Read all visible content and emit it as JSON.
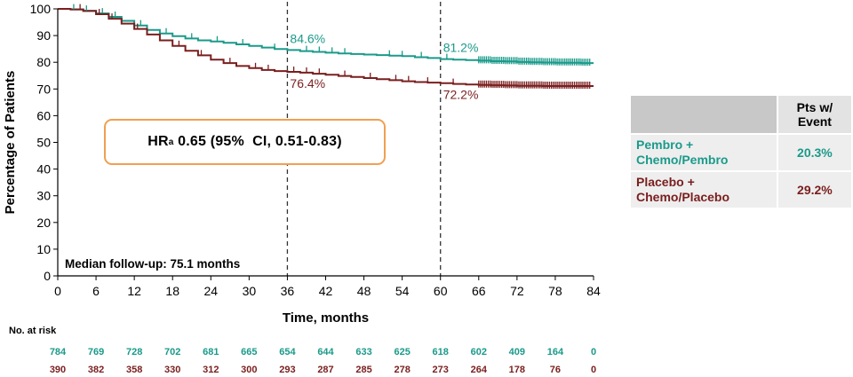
{
  "chart_data": {
    "type": "line",
    "title": "",
    "xlabel": "Time, months",
    "ylabel": "Percentage of Patients",
    "xlim": [
      0,
      84
    ],
    "ylim": [
      0,
      100
    ],
    "xticks": [
      0,
      6,
      12,
      18,
      24,
      30,
      36,
      42,
      48,
      54,
      60,
      66,
      72,
      78,
      84
    ],
    "yticks": [
      0,
      10,
      20,
      30,
      40,
      50,
      60,
      70,
      80,
      90,
      100
    ],
    "grid": false,
    "series": [
      {
        "name": "Pembro + Chemo/Pembro",
        "color": "#1a9a8a",
        "x": [
          0,
          2,
          4,
          6,
          8,
          10,
          12,
          14,
          16,
          18,
          20,
          22,
          24,
          26,
          28,
          30,
          32,
          34,
          36,
          38,
          40,
          42,
          44,
          46,
          48,
          50,
          52,
          54,
          56,
          58,
          60,
          62,
          64,
          66,
          68,
          70,
          72,
          74,
          76,
          78,
          80,
          82,
          84
        ],
        "y": [
          100,
          99.8,
          99.3,
          98.3,
          97,
          95.5,
          93.8,
          92.1,
          90.8,
          89.8,
          88.9,
          88.2,
          87.8,
          87.3,
          86.7,
          86.1,
          85.5,
          85.0,
          84.6,
          84.2,
          83.9,
          83.6,
          83.3,
          83.1,
          82.9,
          82.7,
          82.5,
          82.3,
          81.9,
          81.6,
          81.2,
          81.0,
          80.8,
          80.6,
          80.4,
          80.3,
          80.1,
          80.0,
          79.9,
          79.8,
          79.8,
          79.7,
          79.7
        ]
      },
      {
        "name": "Placebo + Chemo/Placebo",
        "color": "#7a1e1e",
        "x": [
          0,
          2,
          4,
          6,
          8,
          10,
          12,
          14,
          16,
          18,
          20,
          22,
          24,
          26,
          28,
          30,
          32,
          34,
          36,
          38,
          40,
          42,
          44,
          46,
          48,
          50,
          52,
          54,
          56,
          58,
          60,
          62,
          64,
          66,
          68,
          70,
          72,
          74,
          76,
          78,
          80,
          82,
          84
        ],
        "y": [
          100,
          99.8,
          99.2,
          98.0,
          96.3,
          94.5,
          92.5,
          90.4,
          88.2,
          86.1,
          84.3,
          82.6,
          81.0,
          79.7,
          78.6,
          77.8,
          77.1,
          76.7,
          76.4,
          76.1,
          75.7,
          75.3,
          74.9,
          74.5,
          74.1,
          73.7,
          73.3,
          72.9,
          72.6,
          72.4,
          72.2,
          71.9,
          71.7,
          71.5,
          71.4,
          71.3,
          71.2,
          71.2,
          71.1,
          71.1,
          71.1,
          71.1,
          71.1
        ]
      }
    ],
    "reference_lines": [
      36,
      60
    ],
    "annotations": [
      {
        "text": "84.6%",
        "x": 36,
        "y": 84.6,
        "series": 0
      },
      {
        "text": "76.4%",
        "x": 36,
        "y": 76.4,
        "series": 1
      },
      {
        "text": "81.2%",
        "x": 60,
        "y": 81.2,
        "series": 0
      },
      {
        "text": "72.2%",
        "x": 60,
        "y": 72.2,
        "series": 1
      }
    ],
    "numbers_at_risk": {
      "title": "No. at risk",
      "times": [
        0,
        6,
        12,
        18,
        24,
        30,
        36,
        42,
        48,
        54,
        60,
        66,
        72,
        78,
        84
      ],
      "series": [
        {
          "values": [
            784,
            769,
            728,
            702,
            681,
            665,
            654,
            644,
            633,
            625,
            618,
            602,
            409,
            164,
            0
          ]
        },
        {
          "values": [
            390,
            382,
            358,
            330,
            312,
            300,
            293,
            287,
            285,
            278,
            273,
            264,
            178,
            76,
            0
          ]
        }
      ]
    }
  },
  "hr_text": {
    "prefix": "HR",
    "sup": "a",
    "rest": " 0.65 (95%  CI, 0.51-0.83)"
  },
  "followup": "Median follow-up: 75.1 months",
  "event_table": {
    "header": "Pts w/ Event",
    "rows": [
      {
        "arm": "Pembro + Chemo/Pembro",
        "value": "20.3%"
      },
      {
        "arm": "Placebo + Chemo/Placebo",
        "value": "29.2%"
      }
    ]
  }
}
